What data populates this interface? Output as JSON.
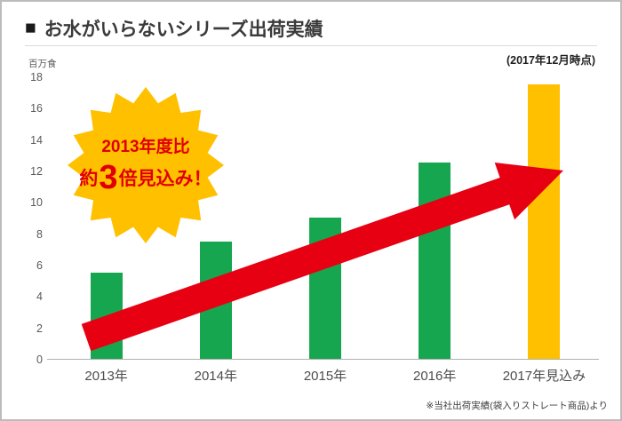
{
  "header": {
    "bullet": "■",
    "title": "お水がいらないシリーズ出荷実績",
    "as_of": "(2017年12月時点)"
  },
  "badge": {
    "line1": "2013年度比",
    "line2_prefix": "約",
    "line2_big": "3",
    "line2_suffix": "倍見込み！"
  },
  "footnote": "※当社出荷実績(袋入りストレート商品)より",
  "chart_data": {
    "type": "bar",
    "title": "お水がいらないシリーズ出荷実績",
    "unit_label": "百万食",
    "categories": [
      "2013年",
      "2014年",
      "2015年",
      "2016年",
      "2017年見込み"
    ],
    "values": [
      5.5,
      7.5,
      9.0,
      12.5,
      17.5
    ],
    "bar_colors": [
      "#17a650",
      "#17a650",
      "#17a650",
      "#17a650",
      "#ffc000"
    ],
    "ylim": [
      0,
      18
    ],
    "ytick_step": 2,
    "grid": false,
    "legend": "none",
    "annotation": "2013年度比 約3倍見込み！"
  },
  "colors": {
    "green_bar": "#17a650",
    "gold_bar": "#ffc000",
    "arrow_red": "#e60012",
    "badge_fill": "#ffc000",
    "badge_text": "#e00000",
    "axis_text": "#595959",
    "title_text": "#3a3a3a"
  }
}
